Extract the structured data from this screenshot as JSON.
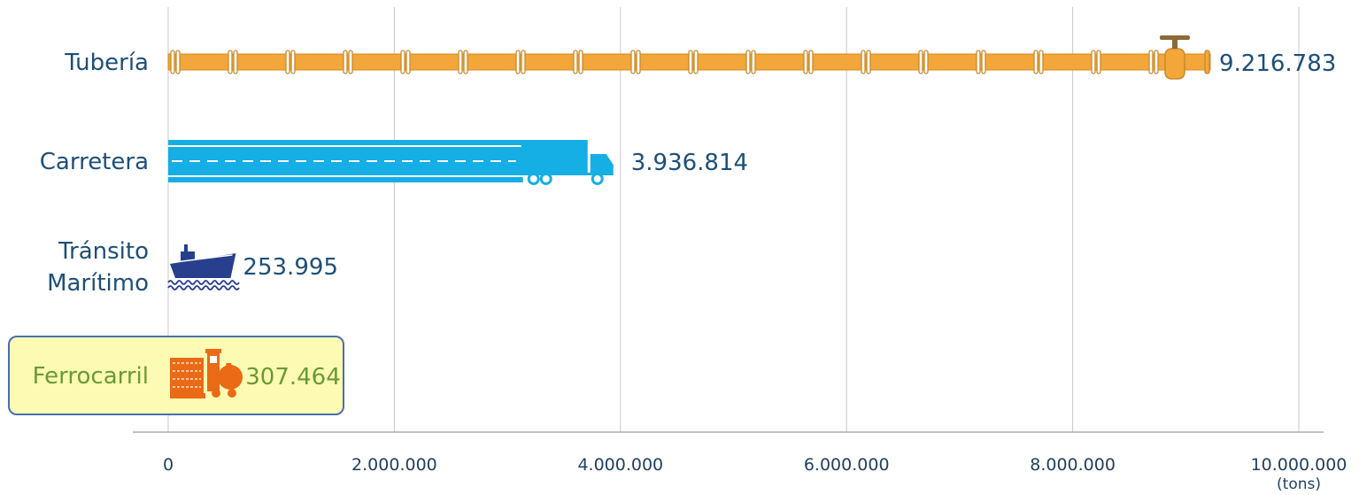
{
  "chart_data": {
    "type": "bar",
    "orientation": "horizontal",
    "categories": [
      "Tubería",
      "Carretera",
      "Tránsito Marítimo",
      "Ferrocarril"
    ],
    "category_lines": [
      [
        "Tubería"
      ],
      [
        "Carretera"
      ],
      [
        "Tránsito",
        "Marítimo"
      ],
      [
        "Ferrocarril"
      ]
    ],
    "values": [
      9216783,
      3936814,
      253995,
      307464
    ],
    "value_labels": [
      "9.216.783",
      "3.936.814",
      "253.995",
      "307.464"
    ],
    "icons": [
      "pipeline-icon",
      "truck-icon",
      "ship-icon",
      "train-icon"
    ],
    "xlim": [
      0,
      10000000
    ],
    "ticks": [
      0,
      2000000,
      4000000,
      6000000,
      8000000,
      10000000
    ],
    "tick_labels": [
      "0",
      "2.000.000",
      "4.000.000",
      "6.000.000",
      "8.000.000",
      "10.000.000"
    ],
    "unit": "(tons)",
    "grid": "vertical",
    "highlighted_category": "Ferrocarril",
    "colors": {
      "pipeline": "#f3a63a",
      "road": "#15aee5",
      "ship": "#273f8c",
      "train": "#ea6a16",
      "label": "#1d4f78",
      "highlight_text": "#6a9a34",
      "highlight_bg": "#fdfbb3",
      "highlight_border": "#4a6fb0",
      "grid": "#c8c8c8"
    }
  }
}
